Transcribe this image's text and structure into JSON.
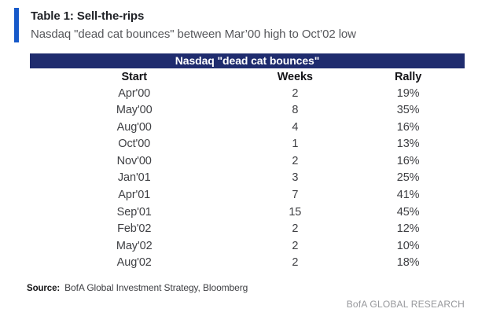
{
  "header": {
    "table_label": "Table 1: Sell-the-rips",
    "subtitle": "Nasdaq \"dead cat bounces\" between Mar’00 high to Oct’02 low"
  },
  "chart_data": {
    "type": "table",
    "title": "Nasdaq \"dead cat bounces\"",
    "columns": [
      "Start",
      "Weeks",
      "Rally"
    ],
    "rows": [
      [
        "Apr'00",
        "2",
        "19%"
      ],
      [
        "May'00",
        "8",
        "35%"
      ],
      [
        "Aug'00",
        "4",
        "16%"
      ],
      [
        "Oct'00",
        "1",
        "13%"
      ],
      [
        "Nov'00",
        "2",
        "16%"
      ],
      [
        "Jan'01",
        "3",
        "25%"
      ],
      [
        "Apr'01",
        "7",
        "41%"
      ],
      [
        "Sep'01",
        "15",
        "45%"
      ],
      [
        "Feb'02",
        "2",
        "12%"
      ],
      [
        "May'02",
        "2",
        "10%"
      ],
      [
        "Aug'02",
        "2",
        "18%"
      ]
    ]
  },
  "footer": {
    "source_label": "Source:",
    "source_text": "BofA Global Investment Strategy, Bloomberg",
    "brand": "BofA GLOBAL RESEARCH"
  },
  "colors": {
    "accent_bar": "#1659c9",
    "band_background": "#1f2c6e",
    "band_text": "#ffffff",
    "title_text": "#1f2126",
    "subtitle_text": "#56575b",
    "body_text": "#3f4044",
    "brand_text": "#97989c"
  }
}
